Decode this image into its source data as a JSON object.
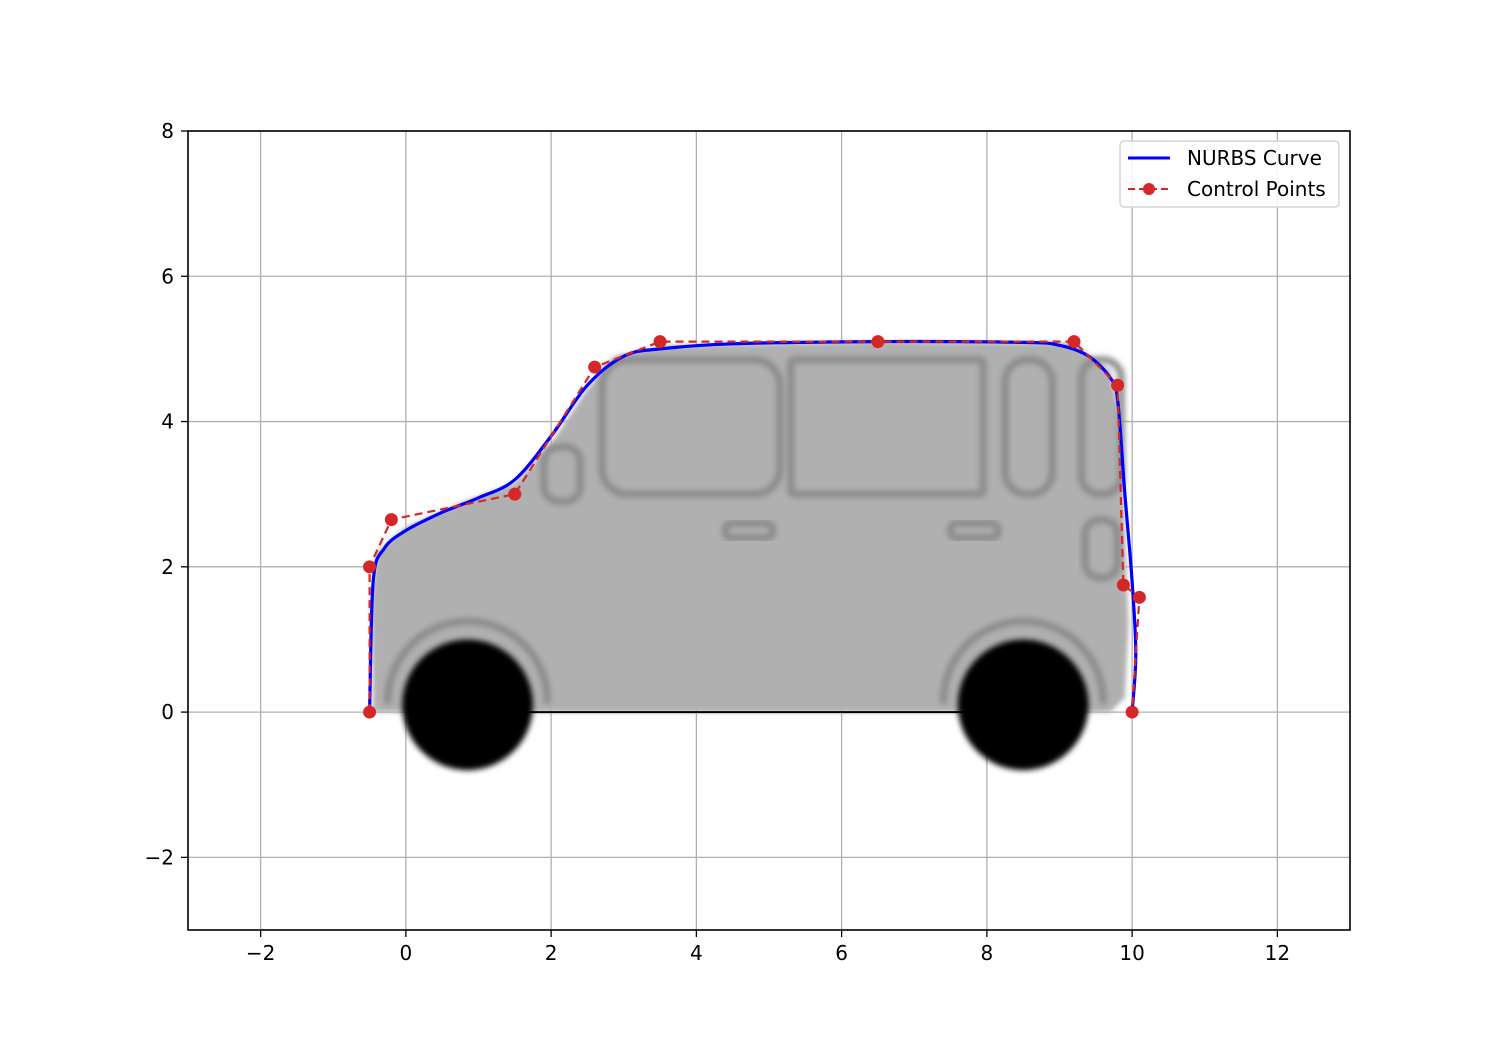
{
  "chart_data": {
    "type": "line",
    "title": "",
    "xlabel": "",
    "ylabel": "",
    "xlim": [
      -3,
      13
    ],
    "ylim": [
      -3,
      8
    ],
    "x_ticks": [
      "−2",
      "0",
      "2",
      "4",
      "6",
      "8",
      "10",
      "12"
    ],
    "y_ticks": [
      "−2",
      "0",
      "2",
      "4",
      "6",
      "8"
    ],
    "x_tick_values": [
      -2,
      0,
      2,
      4,
      6,
      8,
      10,
      12
    ],
    "y_tick_values": [
      -2,
      0,
      2,
      4,
      6,
      8
    ],
    "grid": true,
    "legend_position": "top-right",
    "background_image": "car-side-silhouette",
    "series": [
      {
        "name": "NURBS Curve",
        "style": "solid-line",
        "color": "#0000ff",
        "x": [
          -0.5,
          -0.45,
          -0.3,
          0.0,
          0.5,
          1.0,
          1.5,
          2.0,
          2.5,
          3.0,
          3.5,
          4.5,
          6.5,
          8.5,
          9.0,
          9.4,
          9.7,
          9.8,
          9.9,
          10.0,
          10.05,
          10.0
        ],
        "y": [
          0.0,
          1.8,
          2.25,
          2.5,
          2.75,
          2.95,
          3.2,
          3.8,
          4.5,
          4.9,
          5.0,
          5.07,
          5.1,
          5.09,
          5.05,
          4.9,
          4.6,
          4.3,
          3.0,
          1.8,
          0.8,
          0.0
        ]
      },
      {
        "name": "Control Points",
        "style": "dashed-line-with-markers",
        "color": "#d62728",
        "x": [
          -0.5,
          -0.5,
          -0.2,
          1.5,
          2.6,
          3.5,
          6.5,
          9.2,
          9.8,
          9.88,
          10.1,
          10.0
        ],
        "y": [
          0.0,
          2.0,
          2.65,
          3.0,
          4.75,
          5.1,
          5.1,
          5.1,
          4.5,
          1.75,
          1.58,
          0.0
        ]
      }
    ],
    "wheels": [
      {
        "cx": 0.85,
        "cy": 0.1,
        "r": 0.9
      },
      {
        "cx": 8.5,
        "cy": 0.1,
        "r": 0.9
      }
    ],
    "colors": {
      "curve": "#0000ff",
      "control": "#d62728",
      "car_body": "#b0b0b0",
      "car_lines": "#8a8a8a",
      "wheel": "#000000",
      "grid": "#b0b0b0"
    }
  }
}
